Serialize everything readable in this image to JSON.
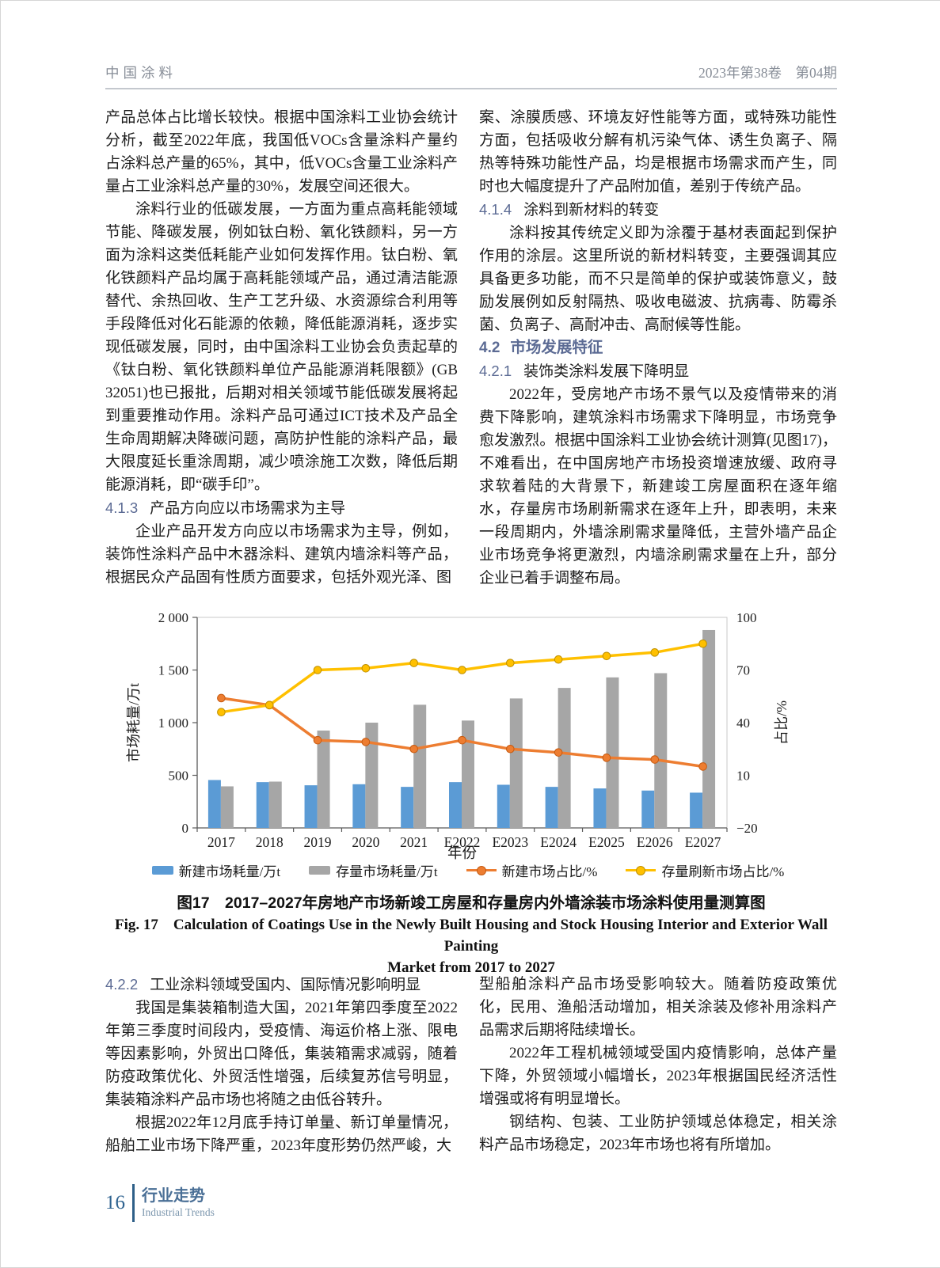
{
  "header": {
    "journal": "中国涂料",
    "issue": "2023年第38卷　第04期"
  },
  "article": {
    "top_left": [
      {
        "kind": "p",
        "indent": false,
        "text": "产品总体占比增长较快。根据中国涂料工业协会统计分析，截至2022年底，我国低VOCs含量涂料产量约占涂料总产量的65%，其中，低VOCs含量工业涂料产量占工业涂料总产量的30%，发展空间还很大。"
      },
      {
        "kind": "p",
        "indent": true,
        "text": "涂料行业的低碳发展，一方面为重点高耗能领域节能、降碳发展，例如钛白粉、氧化铁颜料，另一方面为涂料这类低耗能产业如何发挥作用。钛白粉、氧化铁颜料产品均属于高耗能领域产品，通过清洁能源替代、余热回收、生产工艺升级、水资源综合利用等手段降低对化石能源的依赖，降低能源消耗，逐步实现低碳发展，同时，由中国涂料工业协会负责起草的《钛白粉、氧化铁颜料单位产品能源消耗限额》(GB 32051)也已报批，后期对相关领域节能低碳发展将起到重要推动作用。涂料产品可通过ICT技术及产品全生命周期解决降碳问题，高防护性能的涂料产品，最大限度延长重涂周期，减少喷涂施工次数，降低后期能源消耗，即“碳手印”。"
      },
      {
        "kind": "h3",
        "num": "4.1.3",
        "title": "产品方向应以市场需求为主导"
      },
      {
        "kind": "p",
        "indent": true,
        "text": "企业产品开发方向应以市场需求为主导，例如，装饰性涂料产品中木器涂料、建筑内墙涂料等产品，根据民众产品固有性质方面要求，包括外观光泽、图"
      }
    ],
    "top_right": [
      {
        "kind": "p",
        "indent": false,
        "text": "案、涂膜质感、环境友好性能等方面，或特殊功能性方面，包括吸收分解有机污染气体、诱生负离子、隔热等特殊功能性产品，均是根据市场需求而产生，同时也大幅度提升了产品附加值，差别于传统产品。"
      },
      {
        "kind": "h3",
        "num": "4.1.4",
        "title": "涂料到新材料的转变"
      },
      {
        "kind": "p",
        "indent": true,
        "text": "涂料按其传统定义即为涂覆于基材表面起到保护作用的涂层。这里所说的新材料转变，主要强调其应具备更多功能，而不只是简单的保护或装饰意义，鼓励发展例如反射隔热、吸收电磁波、抗病毒、防霉杀菌、负离子、高耐冲击、高耐候等性能。"
      },
      {
        "kind": "h2",
        "num": "4.2",
        "title": "市场发展特征"
      },
      {
        "kind": "h3",
        "num": "4.2.1",
        "title": "装饰类涂料发展下降明显"
      },
      {
        "kind": "p",
        "indent": true,
        "text": "2022年，受房地产市场不景气以及疫情带来的消费下降影响，建筑涂料市场需求下降明显，市场竞争愈发激烈。根据中国涂料工业协会统计测算(见图17)，不难看出，在中国房地产市场投资增速放缓、政府寻求软着陆的大背景下，新建竣工房屋面积在逐年缩水，存量房市场刷新需求在逐年上升，即表明，未来一段周期内，外墙涂刷需求量降低，主营外墙产品企业市场竞争将更激烈，内墙涂刷需求量在上升，部分企业已着手调整布局。"
      }
    ],
    "bottom_left": [
      {
        "kind": "h3",
        "num": "4.2.2",
        "title": "工业涂料领域受国内、国际情况影响明显"
      },
      {
        "kind": "p",
        "indent": true,
        "text": "我国是集装箱制造大国，2021年第四季度至2022年第三季度时间段内，受疫情、海运价格上涨、限电等因素影响，外贸出口降低，集装箱需求减弱，随着防疫政策优化、外贸活性增强，后续复苏信号明显，集装箱涂料产品市场也将随之由低谷转升。"
      },
      {
        "kind": "p",
        "indent": true,
        "text": "根据2022年12月底手持订单量、新订单量情况，船舶工业市场下降严重，2023年度形势仍然严峻，大"
      }
    ],
    "bottom_right": [
      {
        "kind": "p",
        "indent": false,
        "text": "型船舶涂料产品市场受影响较大。随着防疫政策优化，民用、渔船活动增加，相关涂装及修补用涂料产品需求后期将陆续增长。"
      },
      {
        "kind": "p",
        "indent": true,
        "text": "2022年工程机械领域受国内疫情影响，总体产量下降，外贸领域小幅增长，2023年根据国民经济活性增强或将有明显增长。"
      },
      {
        "kind": "p",
        "indent": true,
        "text": "钢结构、包装、工业防护领域总体稳定，相关涂料产品市场稳定，2023年市场也将有所增加。"
      }
    ]
  },
  "chart_data": {
    "type": "bar+line combo",
    "categories": [
      "2017",
      "2018",
      "2019",
      "2020",
      "2021",
      "E2022",
      "E2023",
      "E2024",
      "E2025",
      "E2026",
      "E2027"
    ],
    "series": [
      {
        "name": "新建市场耗量/万t",
        "type": "bar",
        "axis": "left",
        "color": "#5b9bd5",
        "values": [
          455,
          435,
          405,
          415,
          390,
          435,
          410,
          390,
          375,
          355,
          335
        ]
      },
      {
        "name": "存量市场耗量/万t",
        "type": "bar",
        "axis": "left",
        "color": "#a6a6a6",
        "values": [
          395,
          440,
          925,
          1000,
          1170,
          1020,
          1230,
          1330,
          1430,
          1470,
          1880
        ]
      },
      {
        "name": "新建市场占比/%",
        "type": "line",
        "axis": "right",
        "color": "#ed7d31",
        "marker_stroke": "#c55a11",
        "values": [
          54,
          50,
          30,
          29,
          25,
          30,
          25,
          23,
          20,
          19,
          15
        ]
      },
      {
        "name": "存量刷新市场占比/%",
        "type": "line",
        "axis": "right",
        "color": "#ffc000",
        "marker_stroke": "#bf9000",
        "values": [
          46,
          50,
          70,
          71,
          74,
          70,
          74,
          76,
          78,
          80,
          85
        ]
      }
    ],
    "xlabel": "年份",
    "ylabel_left": "市场耗量/万t",
    "ylabel_right": "占比/%",
    "ylim_left": [
      0,
      2000
    ],
    "yticks_left": [
      "0",
      "500",
      "1 000",
      "1 500",
      "2 000"
    ],
    "ylim_right": [
      -20,
      100
    ],
    "yticks_right": [
      "−20",
      "10",
      "40",
      "70",
      "100"
    ],
    "grid": false,
    "legend_position": "bottom"
  },
  "figure": {
    "caption_zh": "图17　2017–2027年房地产市场新竣工房屋和存量房内外墙涂装市场涂料使用量测算图",
    "caption_en_line1": "Fig. 17　Calculation of Coatings Use in the Newly Built Housing and Stock Housing Interior and Exterior Wall Painting",
    "caption_en_line2": "Market from 2017 to 2027"
  },
  "footer": {
    "page_number": "16",
    "section_zh": "行业走势",
    "section_en": "Industrial Trends"
  },
  "colors": {
    "heading_accent": "#5c6b94",
    "header_gray": "#878d97",
    "footer_blue": "#2e5f88"
  }
}
